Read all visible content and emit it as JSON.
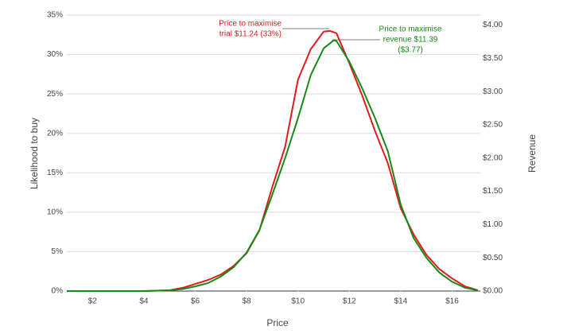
{
  "chart_data": {
    "type": "line",
    "x_label": "Price",
    "y_label": "Likelihood to buy",
    "y2_label": "Revenue",
    "xlim": [
      1,
      17.1
    ],
    "ylim": [
      0,
      35
    ],
    "y2lim": [
      0,
      4.15
    ],
    "xticks": [
      {
        "value": 2,
        "label": "$2"
      },
      {
        "value": 4,
        "label": "$4"
      },
      {
        "value": 6,
        "label": "$6"
      },
      {
        "value": 8,
        "label": "$8"
      },
      {
        "value": 10,
        "label": "$10"
      },
      {
        "value": 12,
        "label": "$12"
      },
      {
        "value": 14,
        "label": "$14"
      },
      {
        "value": 16,
        "label": "$16"
      }
    ],
    "yticks": [
      {
        "value": 0,
        "label": "0%"
      },
      {
        "value": 5,
        "label": "5%"
      },
      {
        "value": 10,
        "label": "10%"
      },
      {
        "value": 15,
        "label": "15%"
      },
      {
        "value": 20,
        "label": "20%"
      },
      {
        "value": 25,
        "label": "25%"
      },
      {
        "value": 30,
        "label": "30%"
      },
      {
        "value": 35,
        "label": "35%"
      }
    ],
    "y2ticks": [
      {
        "value": 0,
        "label": "$0.00"
      },
      {
        "value": 0.5,
        "label": "$0.50"
      },
      {
        "value": 1,
        "label": "$1.00"
      },
      {
        "value": 1.5,
        "label": "$1.50"
      },
      {
        "value": 2,
        "label": "$2.00"
      },
      {
        "value": 2.5,
        "label": "$2.50"
      },
      {
        "value": 3,
        "label": "$3.00"
      },
      {
        "value": 3.5,
        "label": "$3.50"
      },
      {
        "value": 4,
        "label": "$4.00"
      }
    ],
    "grid": true,
    "series": [
      {
        "color": "#e31a1c",
        "x": [
          1,
          2,
          3,
          4,
          5,
          5.5,
          6,
          6.5,
          7,
          7.5,
          8,
          8.5,
          9,
          9.5,
          10,
          10.5,
          11,
          11.24,
          11.5,
          12,
          12.5,
          13,
          13.5,
          14,
          14.5,
          15,
          15.5,
          16,
          16.5,
          17
        ],
        "values": [
          0,
          0,
          0,
          0,
          0.1,
          0.4,
          0.9,
          1.4,
          2.1,
          3.2,
          4.8,
          7.7,
          13.2,
          18.3,
          26.8,
          30.7,
          32.9,
          33,
          32.7,
          28.9,
          24.8,
          20.3,
          16.2,
          10.5,
          7.2,
          4.6,
          2.8,
          1.6,
          0.6,
          0.1
        ]
      },
      {
        "color": "#158a15",
        "axis": "y2",
        "x": [
          1,
          2,
          3,
          4,
          5,
          5.5,
          6,
          6.5,
          7,
          7.5,
          8,
          8.5,
          9,
          9.5,
          10,
          10.5,
          11,
          11.39,
          11.5,
          12,
          12.5,
          13,
          13.5,
          14,
          14.5,
          15,
          15.5,
          16,
          16.5,
          17
        ],
        "values": [
          0,
          0,
          0,
          0,
          0.01,
          0.03,
          0.07,
          0.12,
          0.22,
          0.36,
          0.58,
          0.92,
          1.45,
          2.0,
          2.6,
          3.25,
          3.65,
          3.77,
          3.76,
          3.45,
          3.05,
          2.6,
          2.1,
          1.3,
          0.8,
          0.5,
          0.28,
          0.14,
          0.05,
          0.01
        ]
      }
    ],
    "annotations": [
      {
        "lines": [
          "Price to maximise",
          "trial $11.24 (33%)"
        ],
        "color": "#e31a1c"
      },
      {
        "lines": [
          "Price to maximise",
          "revenue $11.39",
          "($3.77)"
        ],
        "color": "#158a15"
      }
    ]
  }
}
